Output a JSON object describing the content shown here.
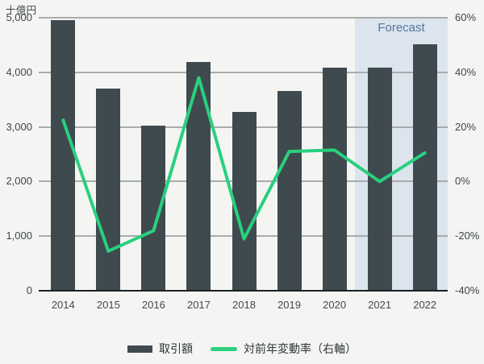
{
  "unit_label": "十億円",
  "forecast": {
    "label": "Forecast",
    "covers_categories": [
      "2021",
      "2022"
    ]
  },
  "legend": {
    "items": [
      {
        "label": "取引額",
        "swatch": "bar"
      },
      {
        "label": "対前年変動率（右軸）",
        "swatch": "line"
      }
    ]
  },
  "colors": {
    "background": "#f4f5f3",
    "bar": "#3e4a4e",
    "line": "#29d07e",
    "forecast_bg": "#dce4ee",
    "forecast_text": "#52779e",
    "gridline": "#a9abac",
    "axis_line": "#1c2022",
    "tick_text": "#3f4548"
  },
  "chart_data": {
    "type": "bar+line",
    "categories": [
      "2014",
      "2015",
      "2016",
      "2017",
      "2018",
      "2019",
      "2020",
      "2021",
      "2022"
    ],
    "series": [
      {
        "name": "取引額",
        "type": "bar",
        "axis": "left",
        "values": [
          4960,
          3700,
          3030,
          4190,
          3280,
          3660,
          4080,
          4090,
          4520
        ]
      },
      {
        "name": "対前年変動率（右軸）",
        "type": "line",
        "axis": "right",
        "values": [
          22.5,
          -25.5,
          -18,
          38,
          -21,
          11,
          11.5,
          0,
          10.5
        ]
      }
    ],
    "left_axis": {
      "label": "十億円",
      "min": 0,
      "max": 5000,
      "ticks": [
        {
          "value": 5000,
          "label": "5,000"
        },
        {
          "value": 4000,
          "label": "4,000"
        },
        {
          "value": 3000,
          "label": "3,000"
        },
        {
          "value": 2000,
          "label": "2,000"
        },
        {
          "value": 1000,
          "label": "1,000"
        },
        {
          "value": 0,
          "label": "0"
        }
      ]
    },
    "right_axis": {
      "min": -40,
      "max": 60,
      "ticks": [
        {
          "value": 60,
          "label": "60%"
        },
        {
          "value": 40,
          "label": "40%"
        },
        {
          "value": 20,
          "label": "20%"
        },
        {
          "value": 0,
          "label": "0%"
        },
        {
          "value": -20,
          "label": "-20%"
        },
        {
          "value": -40,
          "label": "-40%"
        }
      ]
    },
    "grid": true,
    "legend_position": "bottom"
  }
}
